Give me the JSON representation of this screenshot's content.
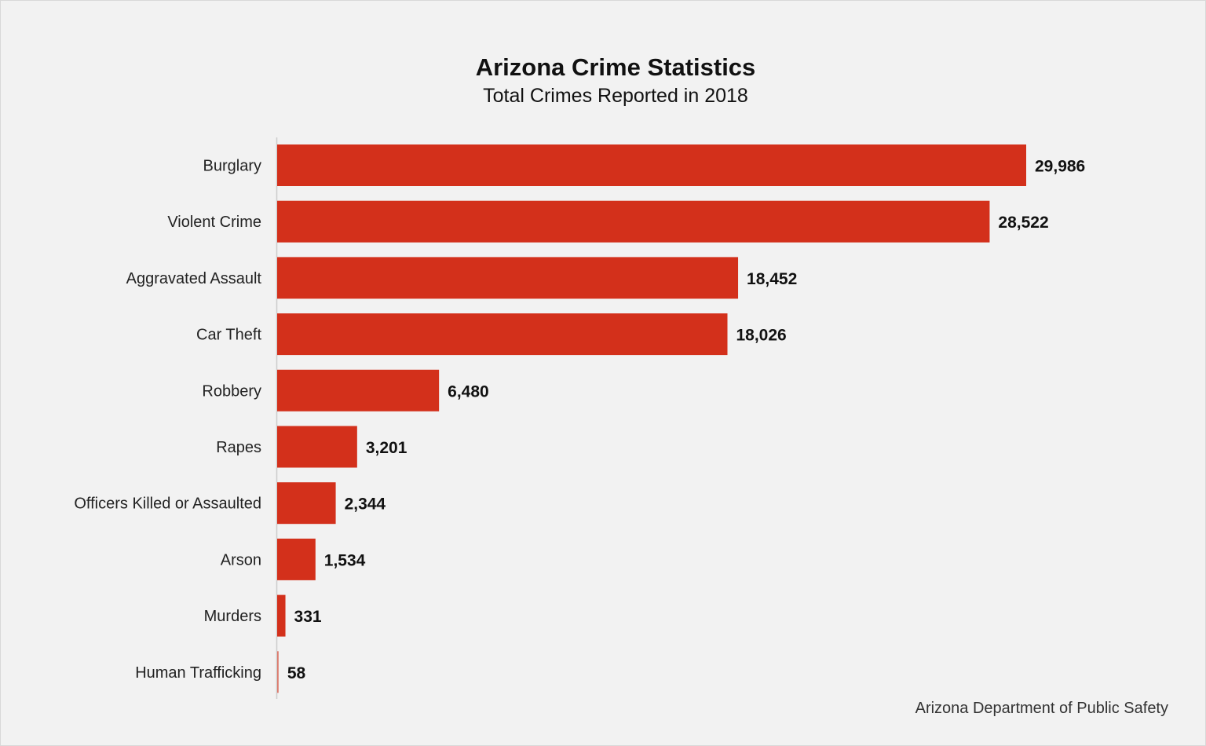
{
  "chart_data": {
    "type": "bar",
    "orientation": "horizontal",
    "title": "Arizona Crime Statistics",
    "subtitle": "Total Crimes Reported in 2018",
    "source": "Arizona Department of Public Safety",
    "categories": [
      "Burglary",
      "Violent Crime",
      "Aggravated Assault",
      "Car Theft",
      "Robbery",
      "Rapes",
      "Officers Killed or Assaulted",
      "Arson",
      "Murders",
      "Human Trafficking"
    ],
    "values": [
      29986,
      28522,
      18452,
      18026,
      6480,
      3201,
      2344,
      1534,
      331,
      58
    ],
    "value_labels": [
      "29,986",
      "28,522",
      "18,452",
      "18,026",
      "6,480",
      "3,201",
      "2,344",
      "1,534",
      "331",
      "58"
    ],
    "xlim": [
      0,
      29986
    ],
    "grid": false,
    "legend": "none",
    "colors": {
      "bar": "#d3301b",
      "background": "#f2f2f2",
      "axis": "#cccccc"
    }
  }
}
